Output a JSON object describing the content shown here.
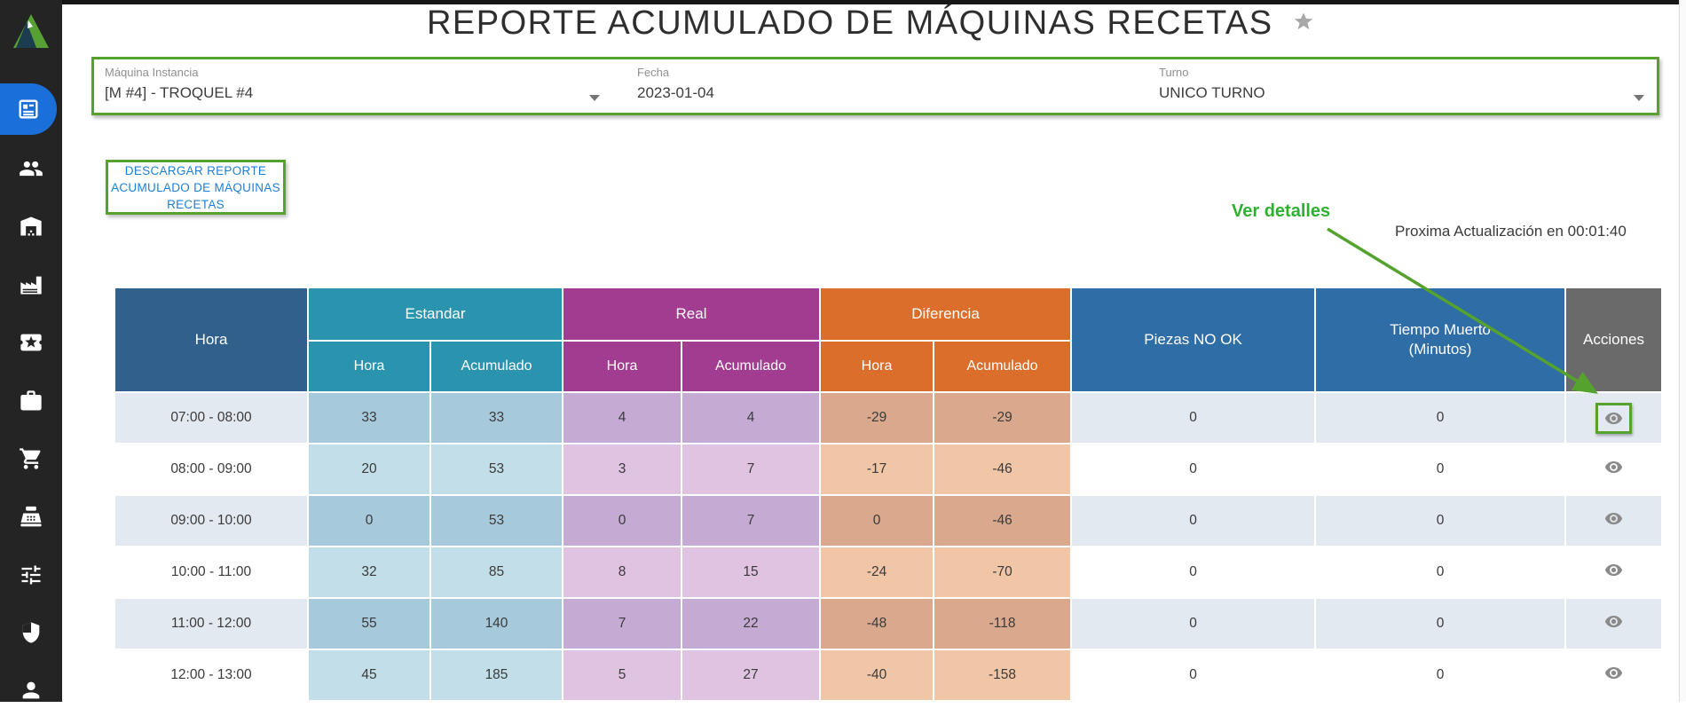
{
  "sidebar": {
    "logo_icon": "company-logo-triangle",
    "items": [
      {
        "icon": "article-icon",
        "active": true
      },
      {
        "icon": "people-icon"
      },
      {
        "icon": "warehouse-icon"
      },
      {
        "icon": "factory-icon"
      },
      {
        "icon": "ticket-star-icon"
      },
      {
        "icon": "briefcase-icon"
      },
      {
        "icon": "shopping-cart-icon"
      },
      {
        "icon": "cash-register-icon"
      },
      {
        "icon": "tune-icon"
      },
      {
        "icon": "shield-icon"
      },
      {
        "icon": "person-icon"
      }
    ]
  },
  "header": {
    "title": "REPORTE ACUMULADO DE MÁQUINAS RECETAS",
    "favorite_icon": "star"
  },
  "filters": {
    "maquina_instancia": {
      "label": "Máquina Instancia",
      "value": "[M #4] - TROQUEL #4"
    },
    "fecha": {
      "label": "Fecha",
      "value": "2023-01-04"
    },
    "turno": {
      "label": "Turno",
      "value": "UNICO TURNO"
    }
  },
  "download_button": {
    "label": "DESCARGAR REPORTE ACUMULADO DE MÁQUINAS RECETAS"
  },
  "annotation": {
    "ver_detalles": "Ver detalles"
  },
  "refresh_note": "Proxima Actualización en 00:01:40",
  "table": {
    "headers": {
      "hora": "Hora",
      "estandar": "Estandar",
      "real": "Real",
      "diferencia": "Diferencia",
      "sub_hora": "Hora",
      "sub_acumulado": "Acumulado",
      "piezas_no_ok": "Piezas NO OK",
      "tiempo_muerto_line1": "Tiempo Muerto",
      "tiempo_muerto_line2": "(Minutos)",
      "acciones": "Acciones"
    },
    "rows": [
      {
        "values": [
          "07:00 - 08:00",
          "33",
          "33",
          "4",
          "4",
          "-29",
          "-29",
          "0",
          "0"
        ],
        "action_icon": "eye",
        "highlighted": true
      },
      {
        "values": [
          "08:00 - 09:00",
          "20",
          "53",
          "3",
          "7",
          "-17",
          "-46",
          "0",
          "0"
        ],
        "action_icon": "eye",
        "highlighted": false
      },
      {
        "values": [
          "09:00 - 10:00",
          "0",
          "53",
          "0",
          "7",
          "0",
          "-46",
          "0",
          "0"
        ],
        "action_icon": "eye",
        "highlighted": false
      },
      {
        "values": [
          "10:00 - 11:00",
          "32",
          "85",
          "8",
          "15",
          "-24",
          "-70",
          "0",
          "0"
        ],
        "action_icon": "eye",
        "highlighted": false
      },
      {
        "values": [
          "11:00 - 12:00",
          "55",
          "140",
          "7",
          "22",
          "-48",
          "-118",
          "0",
          "0"
        ],
        "action_icon": "eye",
        "highlighted": false
      },
      {
        "values": [
          "12:00 - 13:00",
          "45",
          "185",
          "5",
          "27",
          "-40",
          "-158",
          "0",
          "0"
        ],
        "action_icon": "eye",
        "highlighted": false
      }
    ]
  },
  "colors": {
    "annotation_green": "#55a32e",
    "annotation_text_green": "#2fb02f",
    "button_text_blue": "#1d7fd4",
    "active_item_blue": "#1a6fd8",
    "sidebar_background": "#242424",
    "header_hora_blue": "#31608c",
    "header_estandar_teal": "#2a94af",
    "header_real_purple": "#a23c90",
    "header_diferencia_orange": "#db6e2a",
    "header_piezas_blue": "#2e6da6",
    "header_acciones_gray": "#6a6a6a",
    "row_tint_neutral": "#e3e9f1",
    "row_tint_estandar": "#a7c9dc",
    "row_tint_real": "#c5abd3",
    "row_tint_diferencia": "#daa98d"
  }
}
